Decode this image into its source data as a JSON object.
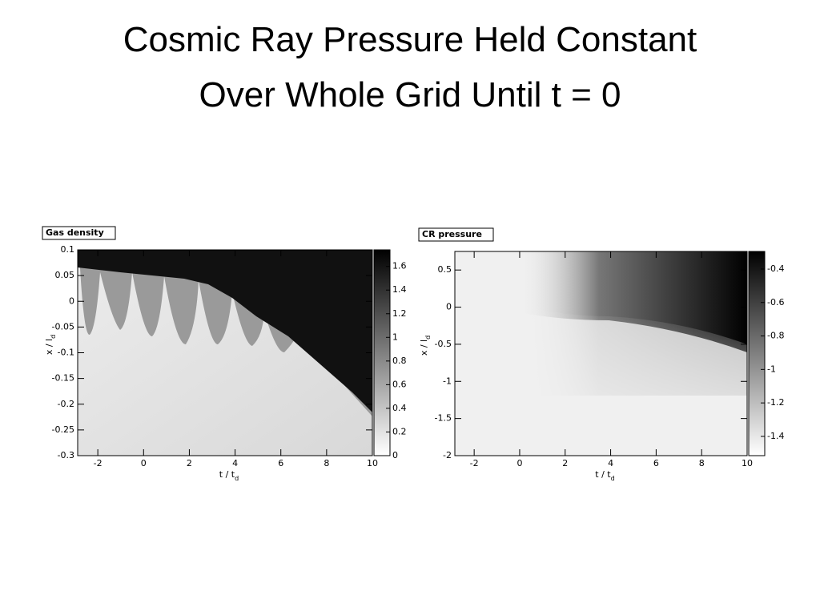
{
  "title": [
    "Cosmic Ray Pressure Held Constant",
    "Over Whole Grid Until t = 0"
  ],
  "chart_data": [
    {
      "type": "heatmap",
      "title": "Gas density",
      "xlabel": [
        "t / t",
        "d"
      ],
      "ylabel": [
        "x / l",
        "d"
      ],
      "xlim": [
        -2.88,
        10
      ],
      "xticks": [
        -2,
        0,
        2,
        4,
        6,
        8,
        10
      ],
      "ylim": [
        -0.3,
        0.1
      ],
      "yticks": [
        -0.3,
        -0.25,
        -0.2,
        -0.15,
        -0.1,
        -0.05,
        0,
        0.05,
        0.1
      ],
      "zlim": [
        0,
        1.74
      ],
      "zticks": [
        0,
        0.2,
        0.4,
        0.6,
        0.8,
        1,
        1.2,
        1.4,
        1.6
      ]
    },
    {
      "type": "heatmap",
      "title": "CR pressure",
      "xlabel": [
        "t / t",
        "d"
      ],
      "ylabel": [
        "x / l",
        "d"
      ],
      "xlim": [
        -2.85,
        10
      ],
      "xticks": [
        -2,
        0,
        2,
        4,
        6,
        8,
        10
      ],
      "ylim": [
        -2,
        0.75
      ],
      "yticks": [
        -2,
        -1.5,
        -1,
        -0.5,
        0,
        0.5
      ],
      "zlim": [
        -1.515,
        -0.295
      ],
      "zticks": [
        -1.4,
        -1.2,
        -1,
        -0.8,
        -0.6,
        -0.4
      ]
    }
  ]
}
